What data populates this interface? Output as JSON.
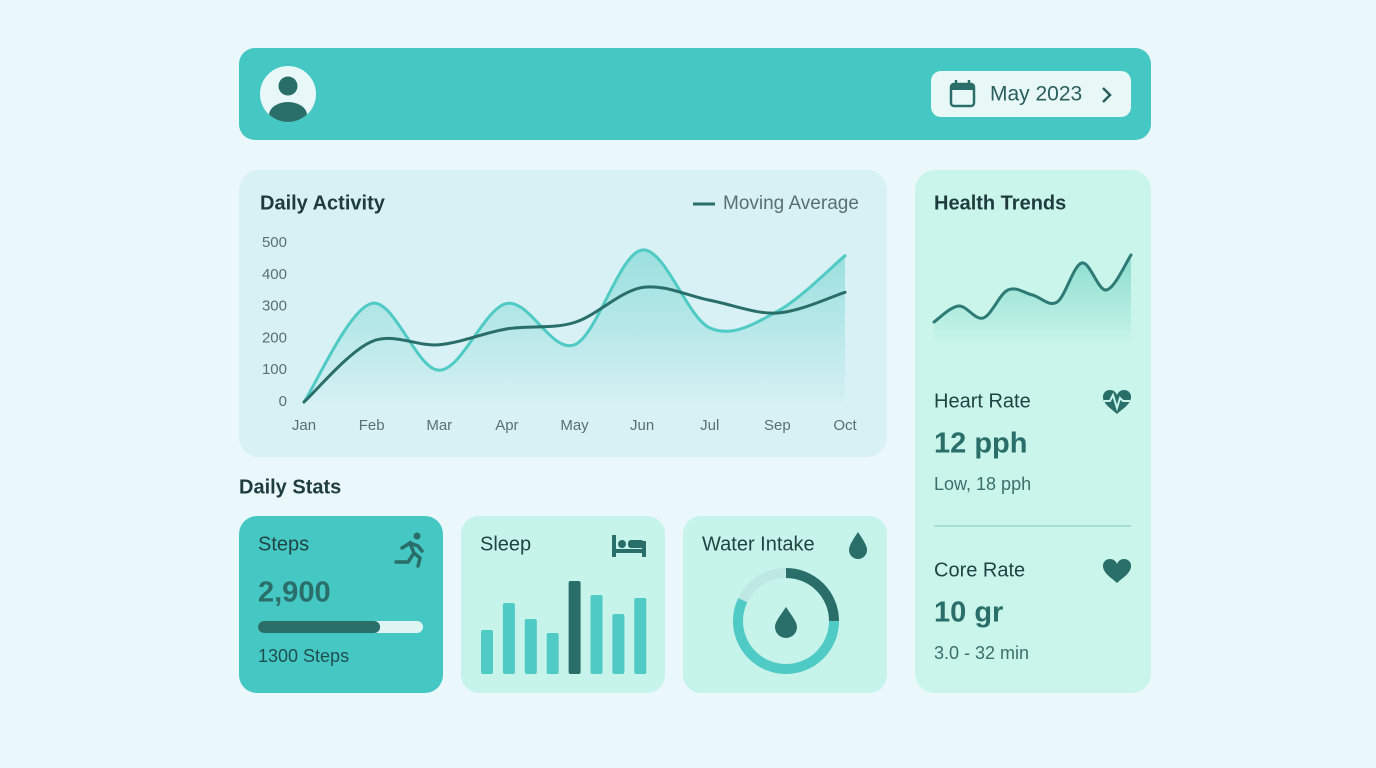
{
  "header": {
    "date": "May 2023"
  },
  "chart_data": [
    {
      "type": "line",
      "title": "Daily Activity",
      "categories": [
        "Jan",
        "Feb",
        "Mar",
        "Apr",
        "May",
        "Jun",
        "Jul",
        "Sep",
        "Oct"
      ],
      "series": [
        {
          "color": "#4fcac4",
          "area": true,
          "values": [
            0,
            310,
            100,
            310,
            180,
            478,
            233,
            285,
            460
          ]
        },
        {
          "name": "Moving Average",
          "color": "#2a6e6a",
          "values": [
            0,
            190,
            180,
            230,
            250,
            360,
            320,
            280,
            345
          ]
        }
      ],
      "ylim": [
        0,
        500
      ],
      "yticks": [
        0,
        100,
        200,
        300,
        400,
        500
      ],
      "grid": false
    },
    {
      "type": "bar",
      "title": "Sleep",
      "values": [
        44,
        71,
        55,
        41,
        93,
        79,
        60,
        76
      ],
      "color": "#4fcac4",
      "highlight": 4,
      "highlight_color": "#2a6e6a",
      "ylim": [
        0,
        100
      ]
    },
    {
      "type": "line",
      "title": "Health Trends",
      "series": [
        {
          "color": "#2e7a74",
          "area": true,
          "values": [
            23,
            39,
            27,
            55,
            50,
            43,
            82,
            55,
            90
          ]
        }
      ],
      "ylim": [
        0,
        100
      ]
    }
  ],
  "stats": {
    "section": "Daily Stats",
    "steps": {
      "label": "Steps",
      "value": "2,900",
      "progress": 74,
      "caption": "1300 Steps"
    },
    "water": {
      "label": "Water Intake",
      "ring": [
        25,
        57
      ],
      "ring_colors": [
        "#2a6e6a",
        "#4fcac4"
      ]
    },
    "heart": {
      "label": "Heart Rate",
      "value": "12 pph",
      "caption": "Low, 18 pph"
    },
    "core": {
      "label": "Core Rate",
      "value": "10 gr",
      "caption": "3.0 - 32 min"
    }
  }
}
